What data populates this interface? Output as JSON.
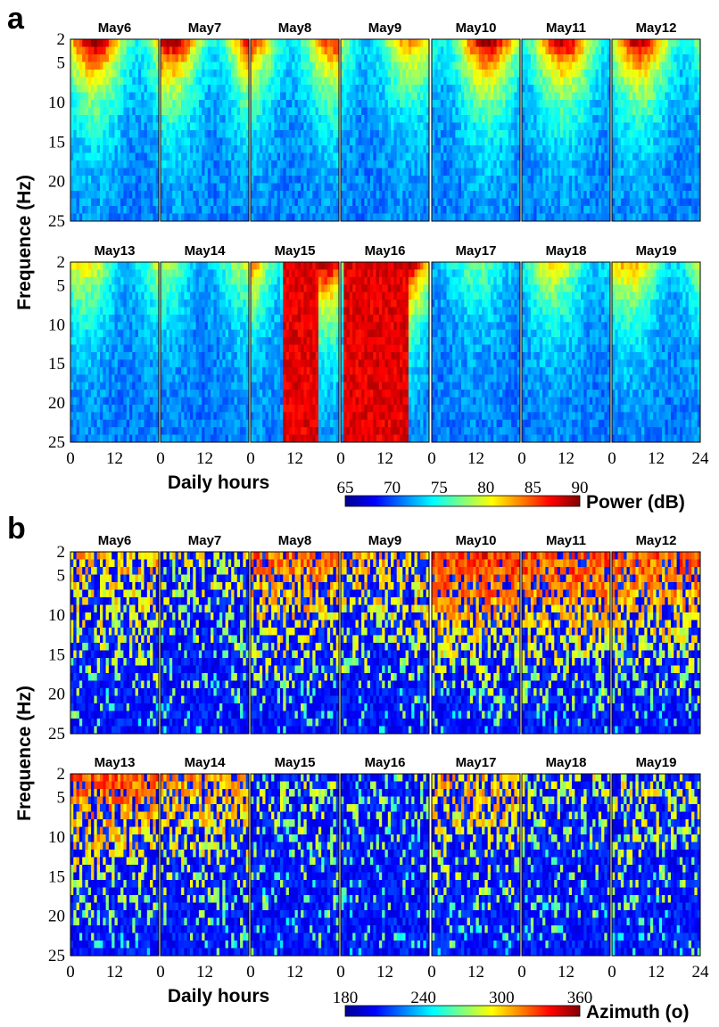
{
  "chart_data": [
    {
      "panel": "a",
      "type": "heatmap",
      "days": [
        "May6",
        "May7",
        "May8",
        "May9",
        "May10",
        "May11",
        "May12",
        "May13",
        "May14",
        "May15",
        "May16",
        "May17",
        "May18",
        "May19"
      ],
      "ylabel": "Frequence (Hz)",
      "xlabel": "Daily hours",
      "y_ticks": [
        "2",
        "5",
        "10",
        "15",
        "20",
        "25"
      ],
      "y_tick_values": [
        2,
        5,
        10,
        15,
        20,
        25
      ],
      "ylim": [
        2,
        25
      ],
      "x_ticks": [
        "0",
        "12",
        "24"
      ],
      "x_tick_values": [
        0,
        12,
        24
      ],
      "xlim": [
        0,
        24
      ],
      "colorbar": {
        "label": "Power (dB)",
        "ticks": [
          "65",
          "70",
          "75",
          "80",
          "85",
          "90"
        ],
        "range": [
          65,
          90
        ]
      },
      "colormap": [
        "#00008f",
        "#0000ff",
        "#0080ff",
        "#00ffff",
        "#80ff80",
        "#ffff00",
        "#ff8000",
        "#ff0000",
        "#800000"
      ],
      "daily_peak_level": [
        88,
        88,
        85,
        82,
        88,
        87,
        87,
        80,
        78,
        88,
        90,
        76,
        80,
        82
      ],
      "grid": false
    },
    {
      "panel": "b",
      "type": "heatmap",
      "days": [
        "May6",
        "May7",
        "May8",
        "May9",
        "May10",
        "May11",
        "May12",
        "May13",
        "May14",
        "May15",
        "May16",
        "May17",
        "May18",
        "May19"
      ],
      "ylabel": "Frequence (Hz)",
      "xlabel": "Daily hours",
      "y_ticks": [
        "2",
        "5",
        "10",
        "15",
        "20",
        "25"
      ],
      "y_tick_values": [
        2,
        5,
        10,
        15,
        20,
        25
      ],
      "ylim": [
        2,
        25
      ],
      "x_ticks": [
        "0",
        "12",
        "24"
      ],
      "x_tick_values": [
        0,
        12,
        24
      ],
      "xlim": [
        0,
        24
      ],
      "colorbar": {
        "label": "Azimuth (o)",
        "ticks": [
          "180",
          "240",
          "300",
          "360"
        ],
        "range": [
          180,
          360
        ]
      },
      "colormap": [
        "#00008f",
        "#0000ff",
        "#0080ff",
        "#00ffff",
        "#80ff80",
        "#ffff00",
        "#ff8000",
        "#ff0000",
        "#800000"
      ],
      "grid": false
    }
  ],
  "panels": {
    "a": "a",
    "b": "b"
  }
}
